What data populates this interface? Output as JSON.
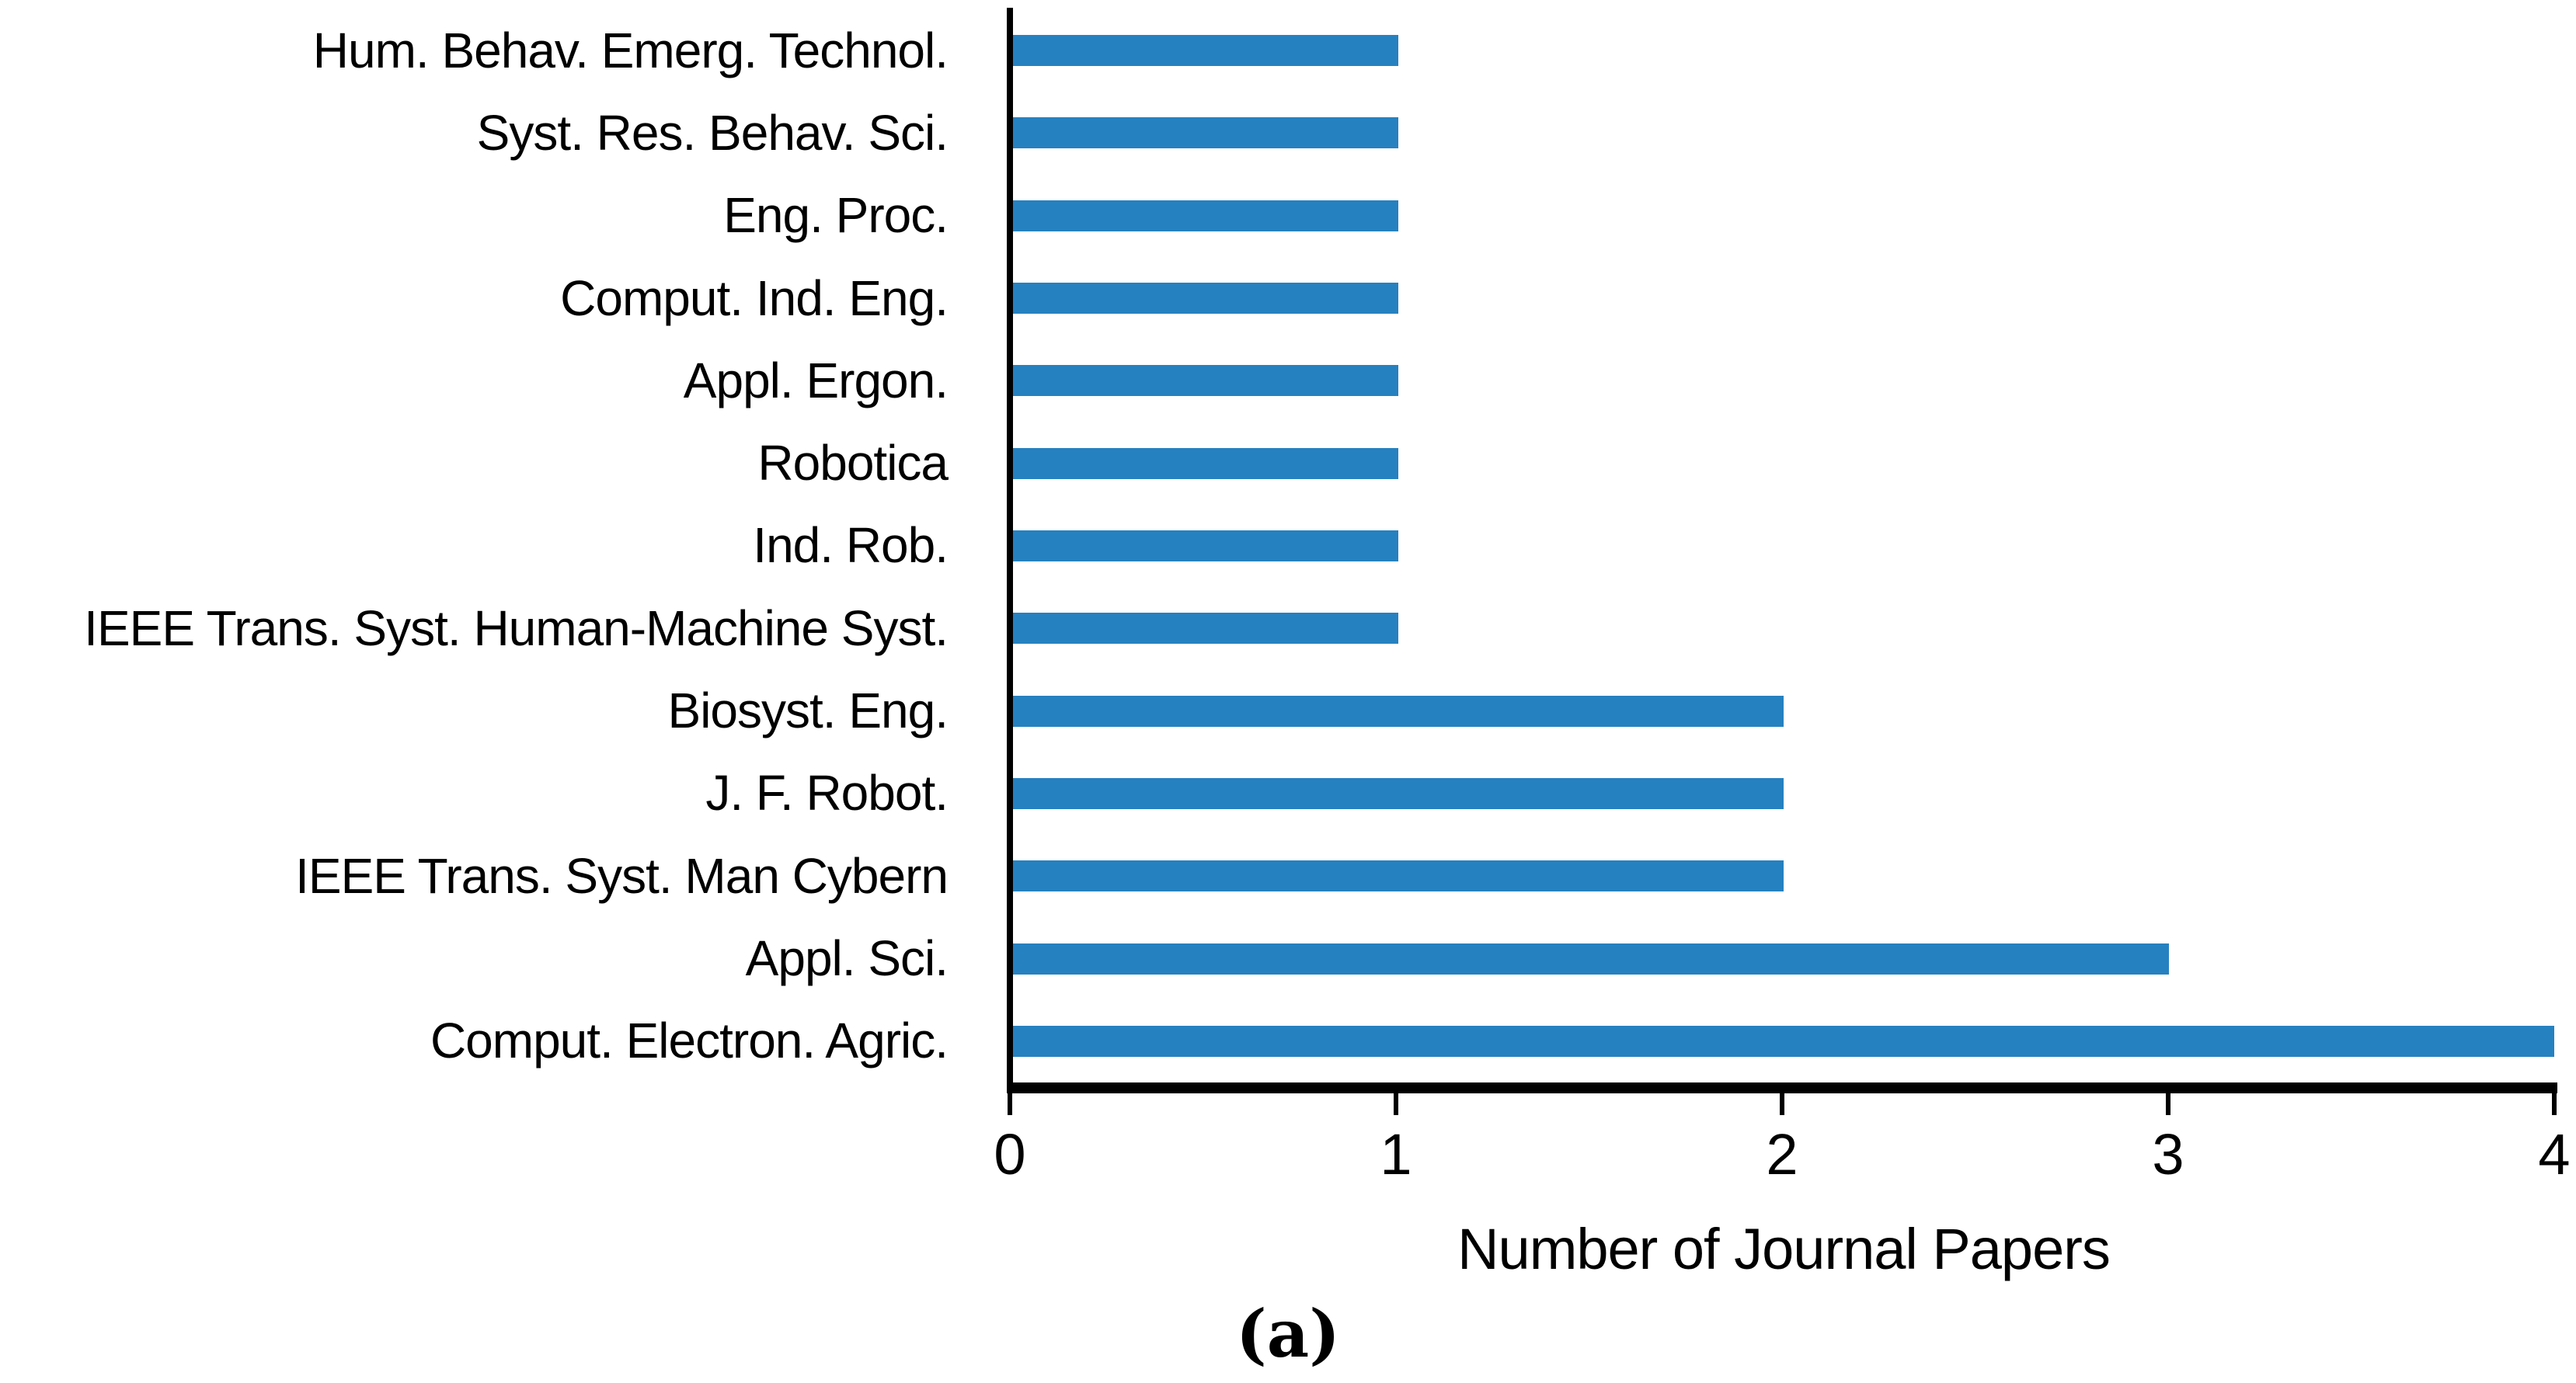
{
  "chart_data": {
    "type": "bar",
    "orientation": "horizontal",
    "title": "",
    "xlabel": "Number of Journal Papers",
    "caption": "(a)",
    "categories": [
      "Hum. Behav. Emerg. Technol.",
      "Syst. Res. Behav. Sci.",
      "Eng. Proc.",
      "Comput. Ind. Eng.",
      "Appl. Ergon.",
      "Robotica",
      "Ind. Rob.",
      "IEEE Trans. Syst. Human-Machine Syst.",
      "Biosyst. Eng.",
      "J. F. Robot.",
      "IEEE Trans. Syst. Man Cybern",
      "Appl. Sci.",
      "Comput. Electron. Agric."
    ],
    "values": [
      1,
      1,
      1,
      1,
      1,
      1,
      1,
      1,
      2,
      2,
      2,
      3,
      4
    ],
    "xlim": [
      0,
      4
    ],
    "xticks": [
      0,
      1,
      2,
      3,
      4
    ],
    "grid": false,
    "legend": null,
    "bar_color": "#2681C0",
    "axis_color": "#000000",
    "text_color": "#000000",
    "background_color": "#FFFFFF"
  }
}
